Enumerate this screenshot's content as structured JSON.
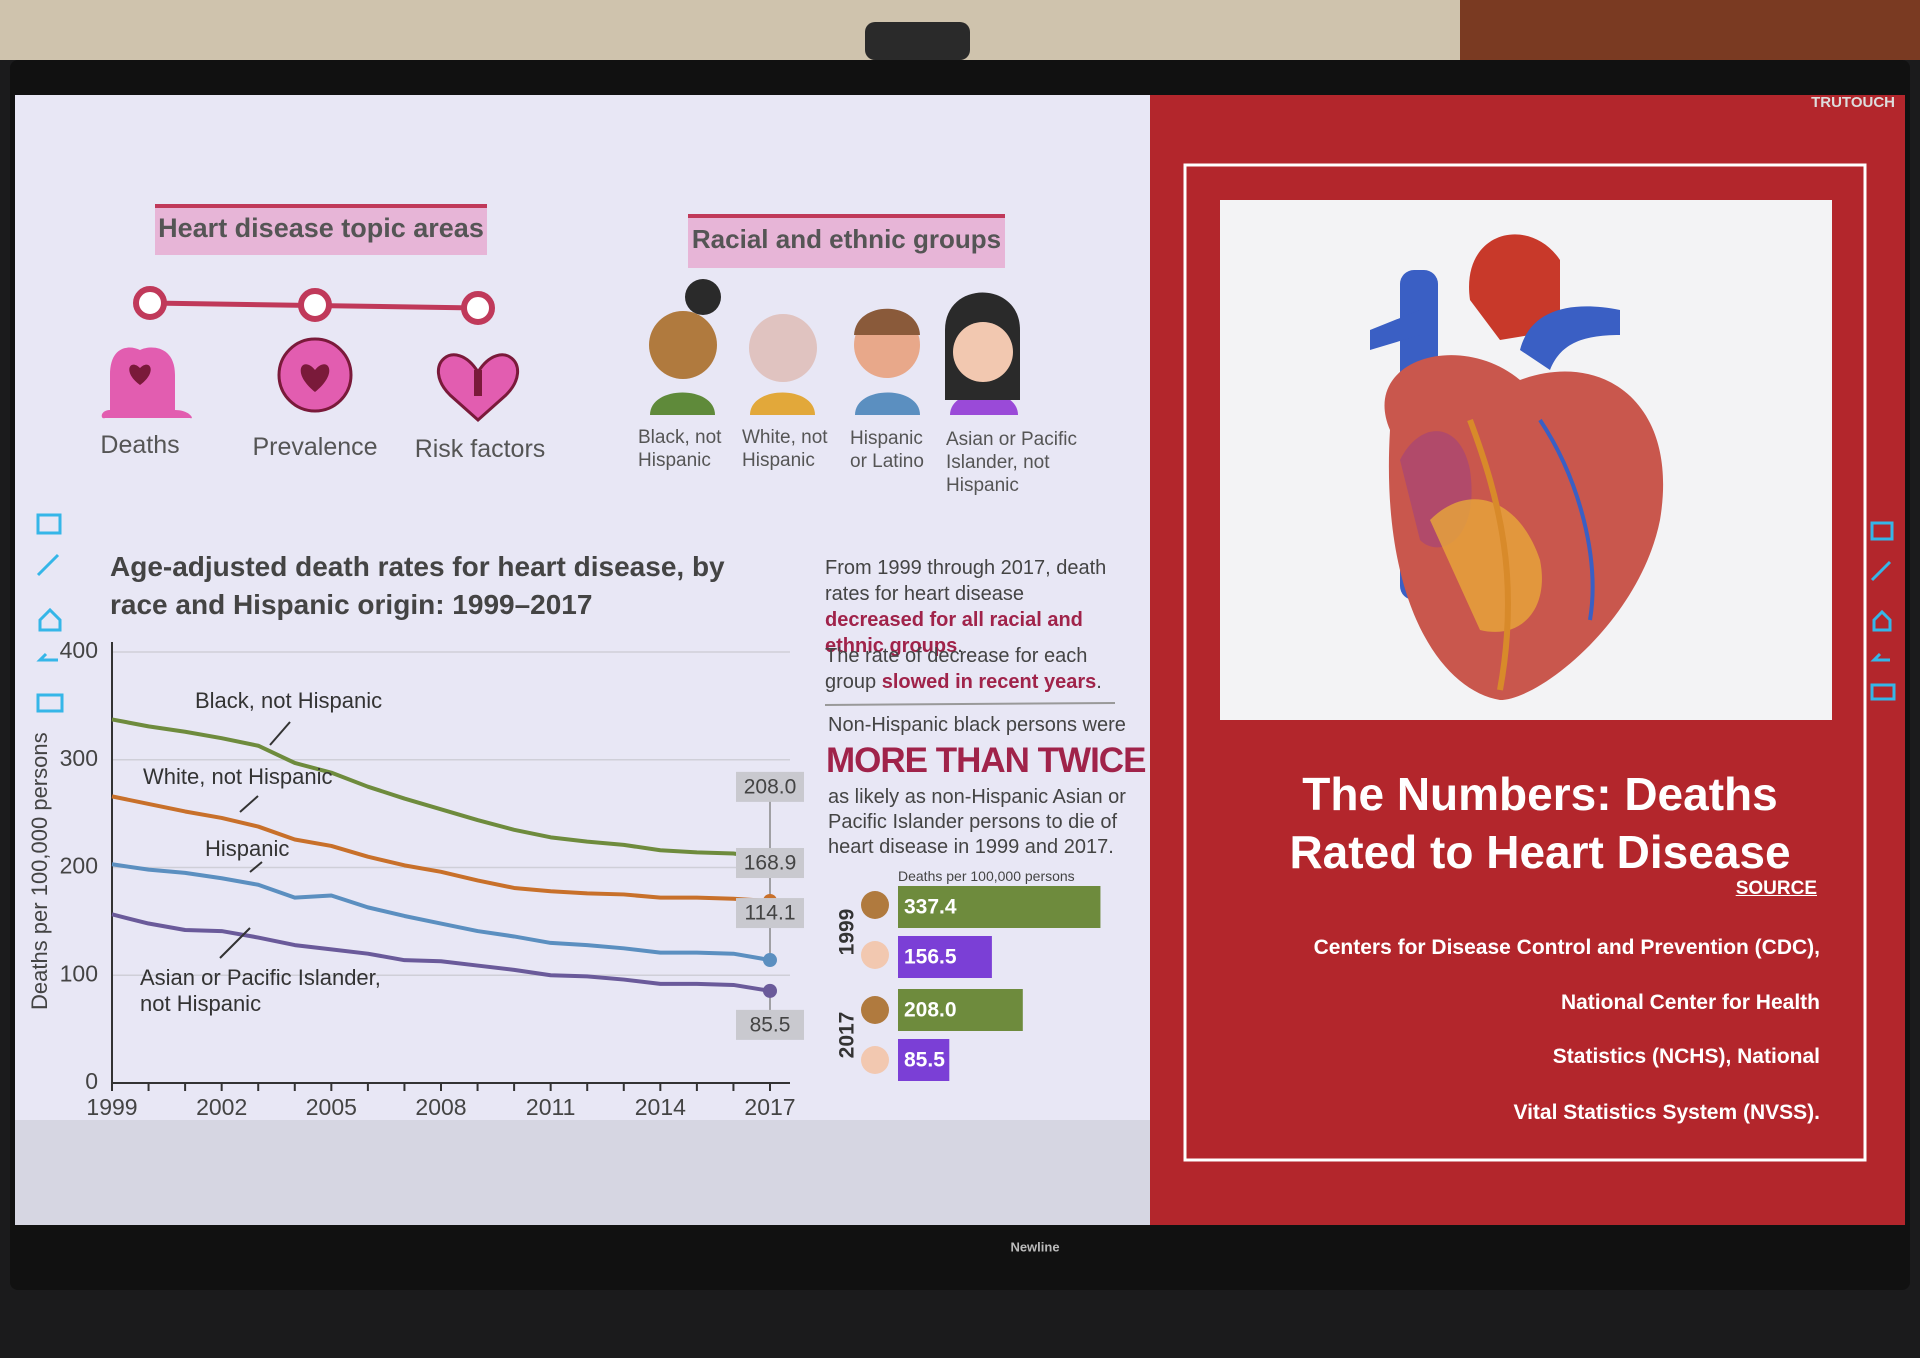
{
  "brand": "TRUTOUCH",
  "monitor_brand": "Newline",
  "topic_areas": {
    "title": "Heart disease topic areas",
    "items": [
      "Deaths",
      "Prevalence",
      "Risk factors"
    ]
  },
  "groups": {
    "title": "Racial and ethnic groups",
    "items": [
      "Black, not Hispanic",
      "White, not Hispanic",
      "Hispanic or Latino",
      "Asian or Pacific Islander, not Hispanic"
    ]
  },
  "notes": [
    [
      "From 1999 through 2017, death rates for heart disease ",
      "decreased for all racial and ethnic groups",
      "."
    ],
    [
      "The rate of decrease for each group ",
      "slowed in recent years",
      "."
    ]
  ],
  "callout": {
    "lead": "Non-Hispanic black persons were",
    "emphasis": "MORE THAN TWICE",
    "text": "as likely as non-Hispanic Asian or Pacific Islander persons to die of heart disease in 1999 and 2017."
  },
  "right_panel": {
    "title": "The Numbers: Deaths Rated to Heart Disease",
    "source_link": "SOURCE",
    "source_lines": [
      "Centers for Disease Control and Prevention (CDC),",
      "National Center for Health",
      "Statistics (NCHS), National",
      "Vital Statistics System (NVSS)."
    ]
  },
  "chart_data": [
    {
      "type": "line",
      "title": "Age-adjusted death rates for heart disease, by race and Hispanic origin: 1999–2017",
      "y_label": "Deaths per 100,000 persons",
      "x": [
        1999,
        2000,
        2001,
        2002,
        2003,
        2004,
        2005,
        2006,
        2007,
        2008,
        2009,
        2010,
        2011,
        2012,
        2013,
        2014,
        2015,
        2016,
        2017
      ],
      "xlim": [
        1999,
        2017
      ],
      "xticks": [
        1999,
        2002,
        2005,
        2008,
        2011,
        2014,
        2017
      ],
      "ylim": [
        0,
        400
      ],
      "yticks": [
        0,
        100,
        200,
        300,
        400
      ],
      "grid": true,
      "series": [
        {
          "name": "Black, not Hispanic",
          "color": "#6e8b3d",
          "values": [
            337.4,
            331,
            326,
            320,
            313,
            297,
            288,
            275,
            264,
            254,
            244,
            235,
            228,
            224,
            221,
            216,
            214,
            213,
            208.0
          ],
          "value_labels": [
            null,
            null,
            null,
            null,
            null,
            null,
            null,
            null,
            null,
            null,
            null,
            null,
            null,
            null,
            null,
            null,
            null,
            null,
            "208.0"
          ]
        },
        {
          "name": "White, not Hispanic",
          "color": "#c8702a",
          "values": [
            266,
            259,
            252,
            246,
            238,
            226,
            220,
            210,
            202,
            196,
            188,
            181,
            178,
            176,
            175,
            172,
            172,
            171,
            168.9
          ],
          "value_labels": [
            null,
            null,
            null,
            null,
            null,
            null,
            null,
            null,
            null,
            null,
            null,
            null,
            null,
            null,
            null,
            null,
            null,
            null,
            "168.9"
          ]
        },
        {
          "name": "Hispanic",
          "color": "#5b8fc0",
          "values": [
            203,
            198,
            195,
            190,
            184,
            172,
            174,
            163,
            155,
            148,
            141,
            136,
            130,
            128,
            125,
            121,
            121,
            120,
            114.1
          ],
          "value_labels": [
            null,
            null,
            null,
            null,
            null,
            null,
            null,
            null,
            null,
            null,
            null,
            null,
            null,
            null,
            null,
            null,
            null,
            null,
            "114.1"
          ]
        },
        {
          "name": "Asian or Pacific Islander, not Hispanic",
          "color": "#6a5a9a",
          "values": [
            156.5,
            148,
            142,
            141,
            135,
            128,
            124,
            120,
            114,
            113,
            109,
            105,
            100,
            99,
            96,
            92,
            92,
            91,
            85.5
          ],
          "value_labels": [
            null,
            null,
            null,
            null,
            null,
            null,
            null,
            null,
            null,
            null,
            null,
            null,
            null,
            null,
            null,
            null,
            null,
            null,
            "85.5"
          ]
        }
      ]
    },
    {
      "type": "bar",
      "orientation": "horizontal",
      "axis_label": "Deaths per 100,000 persons",
      "categories": [
        "1999",
        "2017"
      ],
      "series": [
        {
          "color": "#6e8b3d",
          "values": [
            337.4,
            208.0
          ],
          "value_labels": [
            "337.4",
            "208.0"
          ]
        },
        {
          "color": "#7b3fd6",
          "values": [
            156.5,
            85.5
          ],
          "value_labels": [
            "156.5",
            "85.5"
          ]
        }
      ]
    }
  ]
}
